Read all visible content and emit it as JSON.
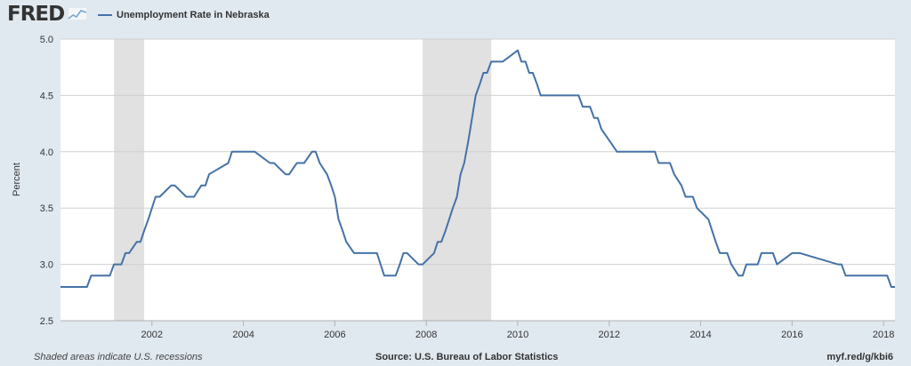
{
  "header": {
    "logo_text": "FRED",
    "legend_label": "Unemployment Rate in Nebraska"
  },
  "footer": {
    "recession_note": "Shaded areas indicate U.S. recessions",
    "source": "Source: U.S. Bureau of Labor Statistics",
    "short_url": "myf.red/g/kbi6"
  },
  "colors": {
    "series": "#4572a7",
    "recession": "#e1e1e1",
    "plot_bg": "#ffffff",
    "page_bg": "#e1e9f0",
    "grid": "#d0d0d0"
  },
  "chart_data": {
    "type": "line",
    "title": "",
    "xlabel": "",
    "ylabel": "Percent",
    "xlim": [
      2000.0,
      2018.25
    ],
    "ylim": [
      2.5,
      5.0
    ],
    "yticks": [
      "2.5",
      "3.0",
      "3.5",
      "4.0",
      "4.5",
      "5.0"
    ],
    "xticks": [
      "2002",
      "2004",
      "2006",
      "2008",
      "2010",
      "2012",
      "2014",
      "2016",
      "2018"
    ],
    "grid": "horizontal",
    "legend": "top-left",
    "recessions": [
      [
        2001.17,
        2001.83
      ],
      [
        2007.92,
        2009.42
      ]
    ],
    "series": [
      {
        "name": "Unemployment Rate in Nebraska",
        "x": [
          2000.0,
          2000.58,
          2000.67,
          2001.08,
          2001.17,
          2001.33,
          2001.42,
          2001.5,
          2001.67,
          2001.75,
          2001.83,
          2001.92,
          2002.0,
          2002.08,
          2002.17,
          2002.42,
          2002.5,
          2002.75,
          2002.83,
          2002.92,
          2003.08,
          2003.17,
          2003.25,
          2003.67,
          2003.75,
          2004.17,
          2004.25,
          2004.58,
          2004.67,
          2004.92,
          2005.0,
          2005.17,
          2005.33,
          2005.5,
          2005.58,
          2005.67,
          2005.83,
          2005.92,
          2006.0,
          2006.08,
          2006.17,
          2006.25,
          2006.42,
          2006.92,
          2007.08,
          2007.33,
          2007.42,
          2007.5,
          2007.58,
          2007.83,
          2007.92,
          2008.17,
          2008.25,
          2008.33,
          2008.42,
          2008.58,
          2008.67,
          2008.75,
          2008.83,
          2008.92,
          2009.0,
          2009.08,
          2009.17,
          2009.25,
          2009.33,
          2009.42,
          2009.5,
          2009.58,
          2009.67,
          2010.0,
          2010.08,
          2010.17,
          2010.25,
          2010.33,
          2010.42,
          2010.5,
          2011.33,
          2011.42,
          2011.58,
          2011.67,
          2011.75,
          2011.83,
          2012.0,
          2012.17,
          2013.0,
          2013.08,
          2013.33,
          2013.42,
          2013.58,
          2013.67,
          2013.83,
          2013.92,
          2014.17,
          2014.25,
          2014.33,
          2014.42,
          2014.58,
          2014.67,
          2014.83,
          2014.92,
          2015.0,
          2015.08,
          2015.25,
          2015.33,
          2015.58,
          2015.67,
          2016.0,
          2016.08,
          2016.17,
          2017.0,
          2017.08,
          2017.17,
          2017.25,
          2018.08,
          2018.17,
          2018.25
        ],
        "y": [
          2.8,
          2.8,
          2.9,
          2.9,
          3.0,
          3.0,
          3.1,
          3.1,
          3.2,
          3.2,
          3.3,
          3.4,
          3.5,
          3.6,
          3.6,
          3.7,
          3.7,
          3.6,
          3.6,
          3.6,
          3.7,
          3.7,
          3.8,
          3.9,
          4.0,
          4.0,
          4.0,
          3.9,
          3.9,
          3.8,
          3.8,
          3.9,
          3.9,
          4.0,
          4.0,
          3.9,
          3.8,
          3.7,
          3.6,
          3.4,
          3.3,
          3.2,
          3.1,
          3.1,
          2.9,
          2.9,
          3.0,
          3.1,
          3.1,
          3.0,
          3.0,
          3.1,
          3.2,
          3.2,
          3.3,
          3.5,
          3.6,
          3.8,
          3.9,
          4.1,
          4.3,
          4.5,
          4.6,
          4.7,
          4.7,
          4.8,
          4.8,
          4.8,
          4.8,
          4.9,
          4.8,
          4.8,
          4.7,
          4.7,
          4.6,
          4.5,
          4.5,
          4.4,
          4.4,
          4.3,
          4.3,
          4.2,
          4.1,
          4.0,
          4.0,
          3.9,
          3.9,
          3.8,
          3.7,
          3.6,
          3.6,
          3.5,
          3.4,
          3.3,
          3.2,
          3.1,
          3.1,
          3.0,
          2.9,
          2.9,
          3.0,
          3.0,
          3.0,
          3.1,
          3.1,
          3.0,
          3.1,
          3.1,
          3.1,
          3.0,
          3.0,
          2.9,
          2.9,
          2.9,
          2.8,
          2.8
        ]
      }
    ]
  }
}
